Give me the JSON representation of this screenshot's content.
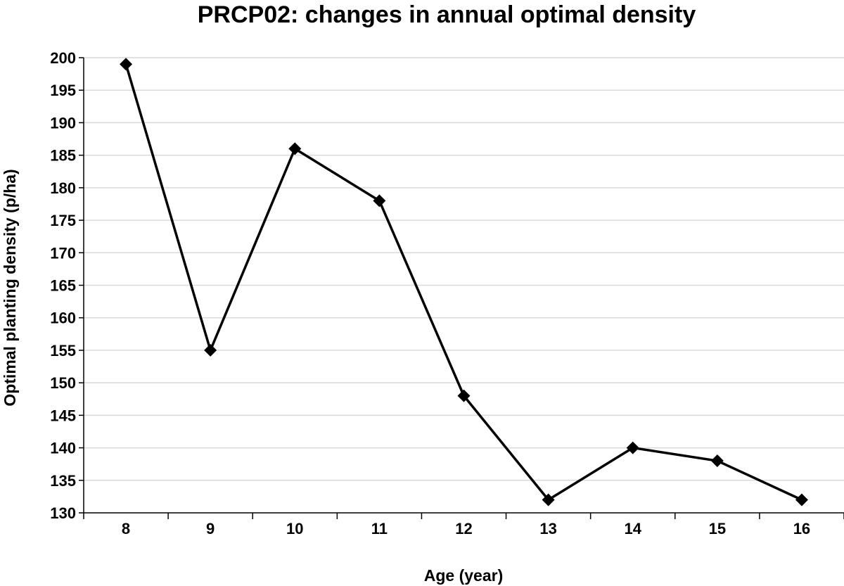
{
  "chart_data": {
    "type": "line",
    "title": "PRCP02: changes in annual optimal density",
    "xlabel": "Age (year)",
    "ylabel": "Optimal planting density (p/ha)",
    "categories": [
      "8",
      "9",
      "10",
      "11",
      "12",
      "13",
      "14",
      "15",
      "16"
    ],
    "series": [
      {
        "name": "Optimal planting density",
        "values": [
          199,
          155,
          186,
          178,
          148,
          132,
          140,
          138,
          132
        ],
        "marker": "diamond",
        "color": "#000000"
      }
    ],
    "ylim": [
      130,
      200
    ],
    "y_ticks": [
      130,
      135,
      140,
      145,
      150,
      155,
      160,
      165,
      170,
      175,
      180,
      185,
      190,
      195,
      200
    ],
    "grid": true,
    "gridline_color": "#d9d9d9",
    "legend": "none"
  }
}
